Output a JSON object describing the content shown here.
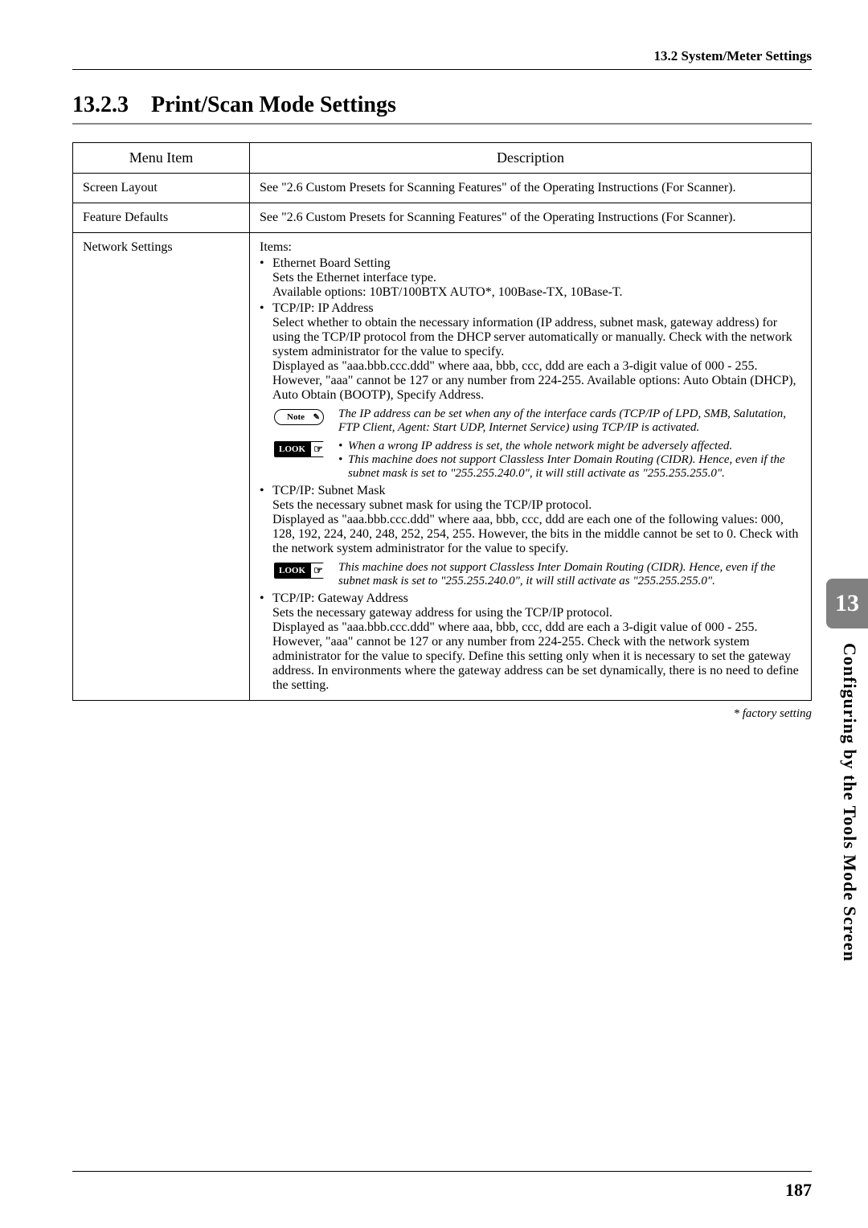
{
  "header": {
    "section_ref": "13.2 System/Meter Settings"
  },
  "section": {
    "number": "13.2.3",
    "title": "Print/Scan Mode Settings"
  },
  "table": {
    "headers": {
      "menu": "Menu Item",
      "desc": "Description"
    },
    "rows": [
      {
        "menu": "Screen Layout",
        "desc_plain": "See \"2.6 Custom Presets for Scanning Features\" of the Operating Instructions (For Scanner)."
      },
      {
        "menu": "Feature Defaults",
        "desc_plain": "See \"2.6 Custom Presets for Scanning Features\" of the Operating Instructions (For Scanner)."
      },
      {
        "menu": "Network Settings",
        "items_label": "Items:",
        "b1": {
          "title": "Ethernet Board Setting",
          "l1": "Sets the Ethernet interface type.",
          "l2": "Available options: 10BT/100BTX AUTO*, 100Base-TX, 10Base-T."
        },
        "b2": {
          "title": "TCP/IP: IP Address",
          "l1": "Select whether to obtain the necessary information (IP address, subnet mask, gateway address) for using the TCP/IP protocol from the DHCP server automatically or manually. Check with the network system administrator for the value to specify.",
          "l2": "Displayed as \"aaa.bbb.ccc.ddd\" where aaa, bbb, ccc, ddd are each a 3-digit value of 000 - 255.  However, \"aaa\" cannot be 127 or any number from 224-255. Available options: Auto Obtain (DHCP), Auto Obtain (BOOTP), Specify Address.",
          "note": "The IP address can be set when any of the interface cards (TCP/IP of LPD, SMB, Salutation, FTP Client, Agent: Start UDP, Internet Service) using TCP/IP is activated.",
          "look1": "When a wrong IP address is set, the whole network might be adversely affected.",
          "look2": "This machine does not support Classless Inter Domain Routing (CIDR). Hence, even if the subnet mask is set to \"255.255.240.0\", it will still activate as \"255.255.255.0\"."
        },
        "b3": {
          "title": "TCP/IP: Subnet Mask",
          "l1": "Sets the necessary subnet mask for using the TCP/IP protocol.",
          "l2": "Displayed as \"aaa.bbb.ccc.ddd\" where aaa, bbb, ccc, ddd are each one of the following values: 000, 128, 192, 224, 240, 248, 252, 254, 255.  However, the bits in the middle cannot be set to 0. Check with the network system administrator for the value to specify.",
          "look": "This machine does not support Classless Inter Domain Routing (CIDR). Hence, even if the subnet mask is set to \"255.255.240.0\", it will still activate as \"255.255.255.0\"."
        },
        "b4": {
          "title": "TCP/IP: Gateway Address",
          "l1": "Sets the necessary gateway address for using the TCP/IP protocol.",
          "l2": "Displayed as \"aaa.bbb.ccc.ddd\" where aaa, bbb, ccc, ddd are each a 3-digit value of  000 - 255.  However, \"aaa\" cannot be 127 or any number from 224-255. Check with the network system administrator for the value to specify. Define this setting only when it is necessary to set the gateway address. In environments where the gateway address can be set dynamically, there is no need to define the setting."
        }
      }
    ]
  },
  "badges": {
    "note": "Note",
    "look": "LOOK"
  },
  "footer": {
    "factory": "* factory setting"
  },
  "sidebar": {
    "chapter": "13",
    "title": "Configuring by the Tools Mode Screen"
  },
  "page": {
    "number": "187"
  },
  "colors": {
    "tab_bg": "#808080",
    "tab_fg": "#ffffff",
    "rule_gray": "#888888"
  }
}
